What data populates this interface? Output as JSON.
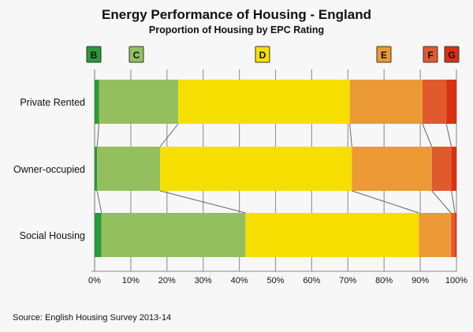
{
  "chart_data": {
    "type": "bar",
    "stacked": true,
    "orientation": "horizontal",
    "title": "Energy Performance of Housing - England",
    "subtitle": "Proportion of Housing by EPC Rating",
    "categories": [
      "Private Rented",
      "Owner-occupied",
      "Social Housing"
    ],
    "series": [
      {
        "name": "B",
        "color": "#2a9a3a",
        "values": [
          1.2,
          0.7,
          1.9
        ]
      },
      {
        "name": "C",
        "color": "#93bf5f",
        "values": [
          21.9,
          17.4,
          39.8
        ]
      },
      {
        "name": "D",
        "color": "#f6df00",
        "values": [
          47.4,
          53.0,
          47.9
        ]
      },
      {
        "name": "E",
        "color": "#eb9a35",
        "values": [
          20.1,
          22.1,
          8.9
        ]
      },
      {
        "name": "F",
        "color": "#e05a2d",
        "values": [
          6.6,
          5.4,
          1.1
        ]
      },
      {
        "name": "G",
        "color": "#d8310f",
        "values": [
          2.8,
          1.4,
          0.4
        ]
      }
    ],
    "xlim": [
      0,
      100
    ],
    "xticks": [
      "0%",
      "10%",
      "20%",
      "30%",
      "40%",
      "50%",
      "60%",
      "70%",
      "80%",
      "90%",
      "100%"
    ],
    "grid": true,
    "legend": "top",
    "source": "Source: English Housing Survey 2013-14"
  }
}
